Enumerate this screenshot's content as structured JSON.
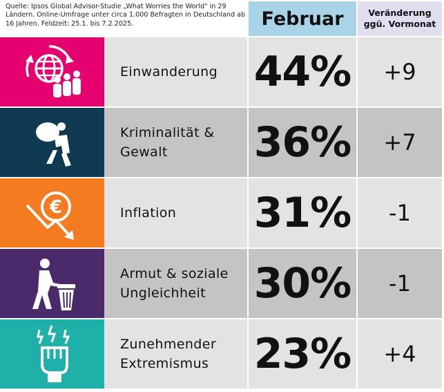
{
  "source_note": "Quelle: Ipsos Global Advisor-Studie „What Worries the World\" in 29 Ländern. Online-Umfrage unter circa 1.000 Befragten in Deutschland ab 16 Jahren. Feldzeit: 25.1. bis 7.2.2025.",
  "header": {
    "february_label": "Februar",
    "change_label_line1": "Veränderung",
    "change_label_line2": "ggü. Vormonat"
  },
  "colors": {
    "february_header": "#a9d4e8",
    "change_header": "#e2deef",
    "cell_light": "#e3e3e3",
    "cell_dark": "#c4c4c4"
  },
  "chart_data": {
    "type": "table",
    "columns": [
      "Februar",
      "Veränderung ggü. Vormonat"
    ],
    "rows": [
      {
        "label": "Einwanderung",
        "value": "44%",
        "change": "+9",
        "icon": "globe-migration-icon",
        "color": "#e6006f",
        "shade": "light"
      },
      {
        "label": "Kriminalität & Gewalt",
        "value": "36%",
        "change": "+7",
        "icon": "thief-icon",
        "color": "#0f3a51",
        "shade": "dark"
      },
      {
        "label": "Inflation",
        "value": "31%",
        "change": "-1",
        "icon": "euro-decline-icon",
        "color": "#f47b20",
        "shade": "light"
      },
      {
        "label": "Armut & soziale Ungleichheit",
        "value": "30%",
        "change": "-1",
        "icon": "poverty-trash-icon",
        "color": "#4b2a6b",
        "shade": "dark"
      },
      {
        "label": "Zunehmender Extremismus",
        "value": "23%",
        "change": "+4",
        "icon": "raised-fist-icon",
        "color": "#1fb0a9",
        "shade": "light"
      }
    ]
  }
}
